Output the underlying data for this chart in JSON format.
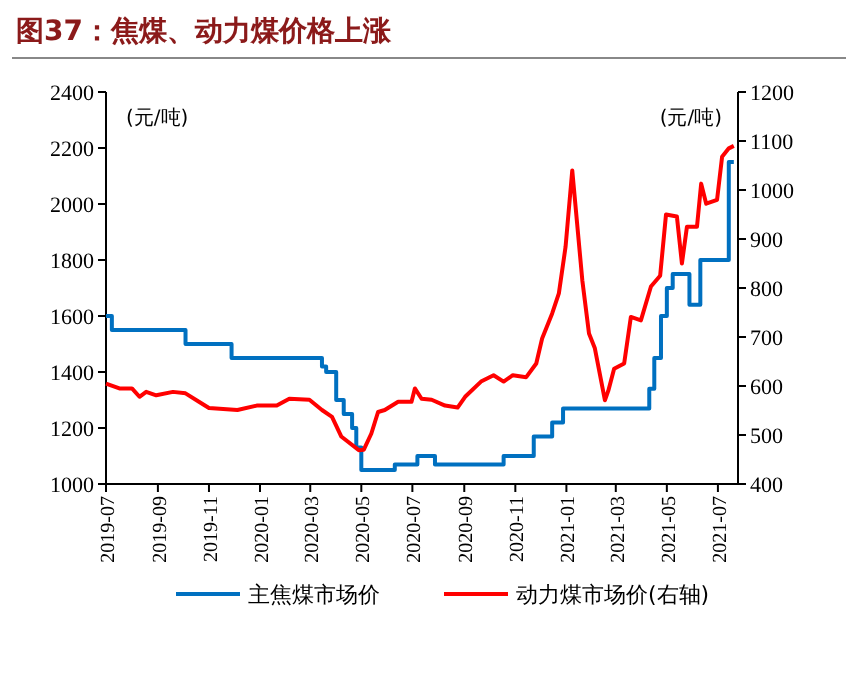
{
  "chart_data": {
    "type": "line",
    "title": "图37：焦煤、动力煤价格上涨",
    "ylabel": "(元/吨)",
    "y2label": "(元/吨)",
    "xlim": [
      "2019-07",
      "2021-07-25"
    ],
    "xticks": [
      "2019-07",
      "2019-09",
      "2019-11",
      "2020-01",
      "2020-03",
      "2020-05",
      "2020-07",
      "2020-09",
      "2020-11",
      "2021-01",
      "2021-03",
      "2021-05",
      "2021-07"
    ],
    "ylim": [
      1000,
      2400
    ],
    "yticks": [
      1000,
      1200,
      1400,
      1600,
      1800,
      2000,
      2200,
      2400
    ],
    "y2lim": [
      400,
      1200
    ],
    "y2ticks": [
      400,
      500,
      600,
      700,
      800,
      900,
      1000,
      1100,
      1200
    ],
    "grid": false,
    "legend": "bottom",
    "line_style": "solid",
    "marker": "none",
    "series": [
      {
        "name": "主焦煤市场价",
        "color": "#0070c0",
        "type": "step",
        "x": [
          "2019-07-01",
          "2019-07-08",
          "2019-10-04",
          "2019-11-28",
          "2020-03-10",
          "2020-03-15",
          "2020-03-20",
          "2020-04-01",
          "2020-04-10",
          "2020-04-20",
          "2020-04-25",
          "2020-05-01",
          "2020-06-10",
          "2020-07-07",
          "2020-07-28",
          "2020-10-18",
          "2020-11-23",
          "2020-12-15",
          "2020-12-28",
          "2021-04-10",
          "2021-04-16",
          "2021-04-24",
          "2021-05-01",
          "2021-05-08",
          "2021-05-28",
          "2021-06-10",
          "2021-07-14",
          "2021-07-20"
        ],
        "values": [
          1600,
          1550,
          1500,
          1450,
          1450,
          1420,
          1400,
          1300,
          1250,
          1200,
          1130,
          1050,
          1070,
          1100,
          1070,
          1100,
          1170,
          1220,
          1270,
          1340,
          1450,
          1600,
          1700,
          1750,
          1640,
          1800,
          2150,
          2150
        ]
      },
      {
        "name": "动力煤市场价(右轴)",
        "color": "#ff0000",
        "axis": "y2",
        "x": [
          "2019-07-01",
          "2019-07-17",
          "2019-08-01",
          "2019-08-10",
          "2019-08-18",
          "2019-08-30",
          "2019-09-19",
          "2019-10-04",
          "2019-10-20",
          "2019-11-01",
          "2019-12-05",
          "2019-12-28",
          "2020-01-21",
          "2020-02-05",
          "2020-02-29",
          "2020-03-15",
          "2020-03-27",
          "2020-04-07",
          "2020-04-28",
          "2020-05-04",
          "2020-05-13",
          "2020-05-21",
          "2020-05-29",
          "2020-06-14",
          "2020-06-30",
          "2020-07-04",
          "2020-07-12",
          "2020-07-24",
          "2020-08-09",
          "2020-08-24",
          "2020-09-02",
          "2020-09-21",
          "2020-10-06",
          "2020-10-18",
          "2020-10-29",
          "2020-11-14",
          "2020-11-26",
          "2020-12-03",
          "2020-12-15",
          "2020-12-23",
          "2020-12-31",
          "2021-01-08",
          "2021-01-20",
          "2021-01-28",
          "2021-02-04",
          "2021-02-16",
          "2021-02-20",
          "2021-02-27",
          "2021-03-11",
          "2021-03-19",
          "2021-03-31",
          "2021-04-12",
          "2021-04-23",
          "2021-04-30",
          "2021-05-13",
          "2021-05-19",
          "2021-05-25",
          "2021-06-06",
          "2021-06-11",
          "2021-06-17",
          "2021-06-30",
          "2021-07-06",
          "2021-07-14",
          "2021-07-20"
        ],
        "values": [
          605,
          595,
          595,
          578,
          588,
          581,
          588,
          585,
          568,
          555,
          551,
          560,
          560,
          574,
          572,
          551,
          537,
          497,
          469,
          470,
          503,
          547,
          551,
          568,
          568,
          595,
          574,
          572,
          560,
          556,
          578,
          609,
          622,
          609,
          622,
          618,
          646,
          697,
          748,
          789,
          884,
          1040,
          816,
          707,
          677,
          571,
          590,
          635,
          646,
          741,
          734,
          803,
          825,
          950,
          946,
          850,
          925,
          925,
          1013,
          972,
          980,
          1068,
          1085,
          1090
        ]
      }
    ]
  }
}
